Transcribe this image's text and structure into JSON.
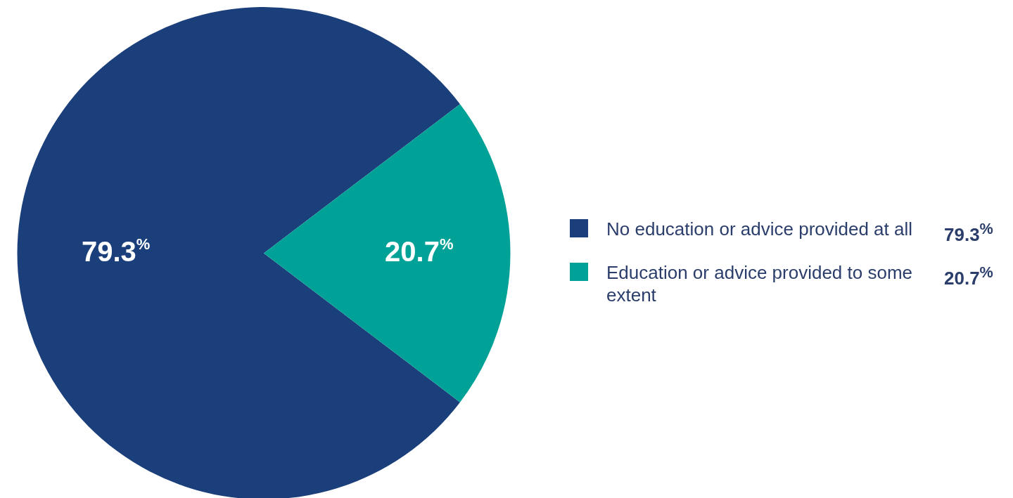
{
  "chart_data": {
    "type": "pie",
    "categories": [
      "No education or advice provided at all",
      "Education or advice provided to some extent"
    ],
    "values": [
      79.3,
      20.7
    ],
    "colors": [
      "#1b3f7b",
      "#00a196"
    ],
    "value_labels": [
      "79.3$^{%}$",
      "20.7$^{%}$"
    ],
    "legend": "right"
  }
}
